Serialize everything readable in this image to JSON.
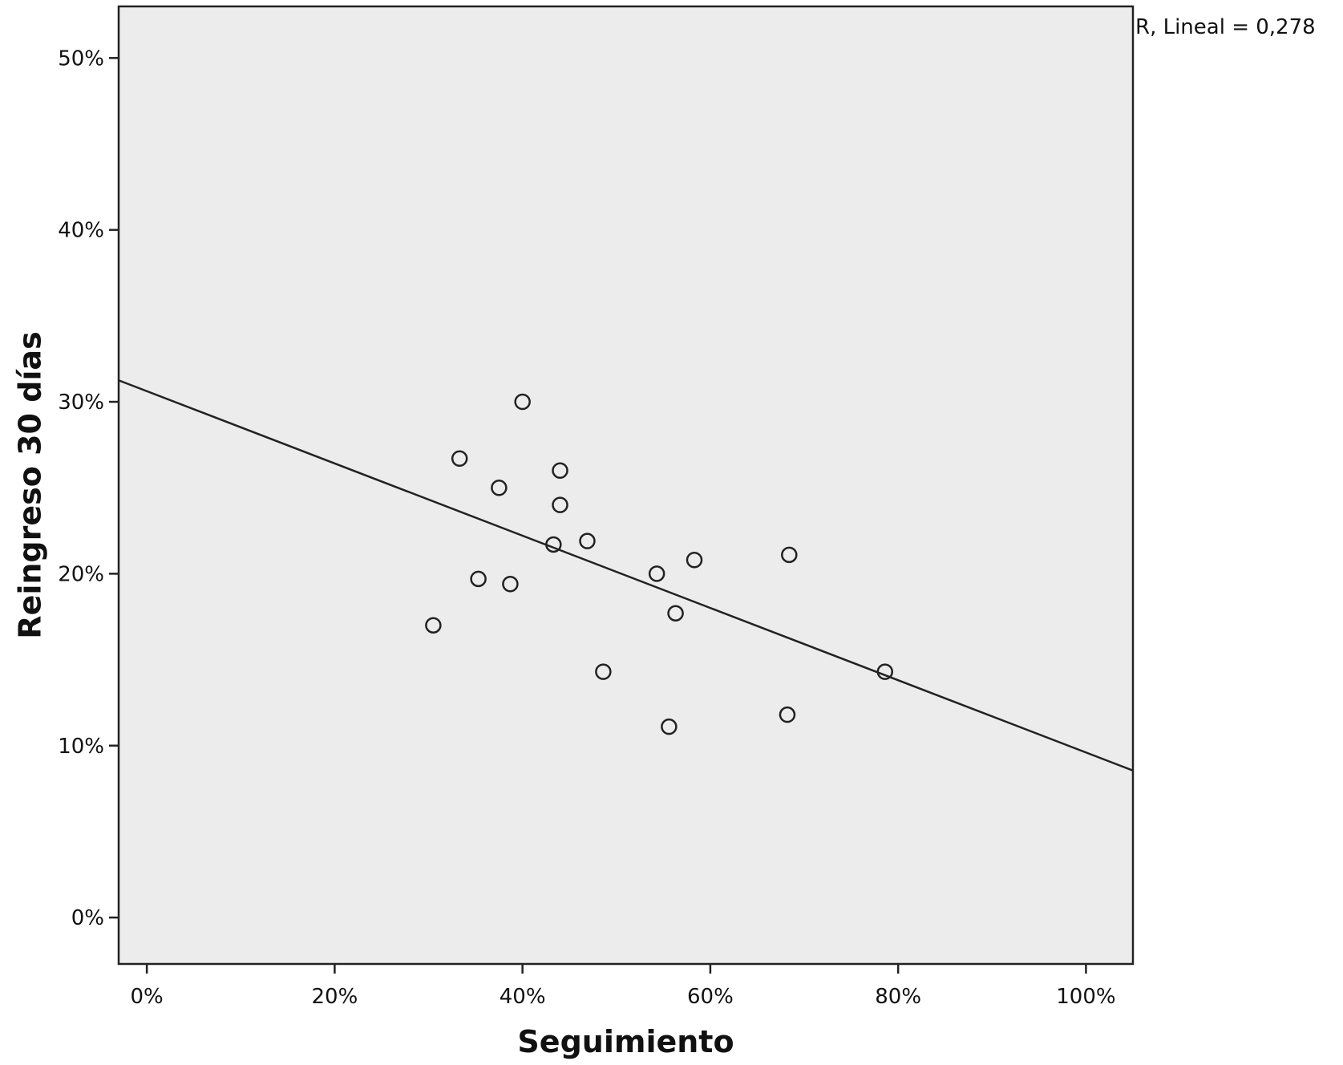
{
  "chart_data": {
    "type": "scatter",
    "title": "",
    "xlabel": "Seguimiento",
    "ylabel": "Reingreso 30 días",
    "xlim": [
      -0.03,
      1.05
    ],
    "ylim": [
      -0.027,
      0.53
    ],
    "x_ticks": [
      {
        "value": 0,
        "label": "0%"
      },
      {
        "value": 0.2,
        "label": "20%"
      },
      {
        "value": 0.4,
        "label": "40%"
      },
      {
        "value": 0.6,
        "label": "60%"
      },
      {
        "value": 0.8,
        "label": "80%"
      },
      {
        "value": 1.0,
        "label": "100%"
      }
    ],
    "y_ticks": [
      {
        "value": 0,
        "label": "0%"
      },
      {
        "value": 0.1,
        "label": "10%"
      },
      {
        "value": 0.2,
        "label": "20%"
      },
      {
        "value": 0.3,
        "label": "30%"
      },
      {
        "value": 0.4,
        "label": "40%"
      },
      {
        "value": 0.5,
        "label": "50%"
      }
    ],
    "points": [
      {
        "x": 0.305,
        "y": 0.17
      },
      {
        "x": 0.333,
        "y": 0.267
      },
      {
        "x": 0.353,
        "y": 0.197
      },
      {
        "x": 0.375,
        "y": 0.25
      },
      {
        "x": 0.387,
        "y": 0.194
      },
      {
        "x": 0.4,
        "y": 0.3
      },
      {
        "x": 0.433,
        "y": 0.217
      },
      {
        "x": 0.44,
        "y": 0.26
      },
      {
        "x": 0.44,
        "y": 0.24
      },
      {
        "x": 0.469,
        "y": 0.219
      },
      {
        "x": 0.486,
        "y": 0.143
      },
      {
        "x": 0.543,
        "y": 0.2
      },
      {
        "x": 0.556,
        "y": 0.111
      },
      {
        "x": 0.563,
        "y": 0.177
      },
      {
        "x": 0.583,
        "y": 0.208
      },
      {
        "x": 0.682,
        "y": 0.118
      },
      {
        "x": 0.684,
        "y": 0.211
      },
      {
        "x": 0.786,
        "y": 0.143
      }
    ],
    "fit_line": {
      "type": "linear",
      "x0": -0.03,
      "y0": 0.3125,
      "x1": 1.05,
      "y1": 0.0855
    },
    "fit_label": "R, Lineal = 0,278",
    "grid": false,
    "legend": "none",
    "colors": {
      "plot_background": "#ececec",
      "frame": "#222222",
      "marker": "#222222",
      "line": "#222222"
    }
  }
}
